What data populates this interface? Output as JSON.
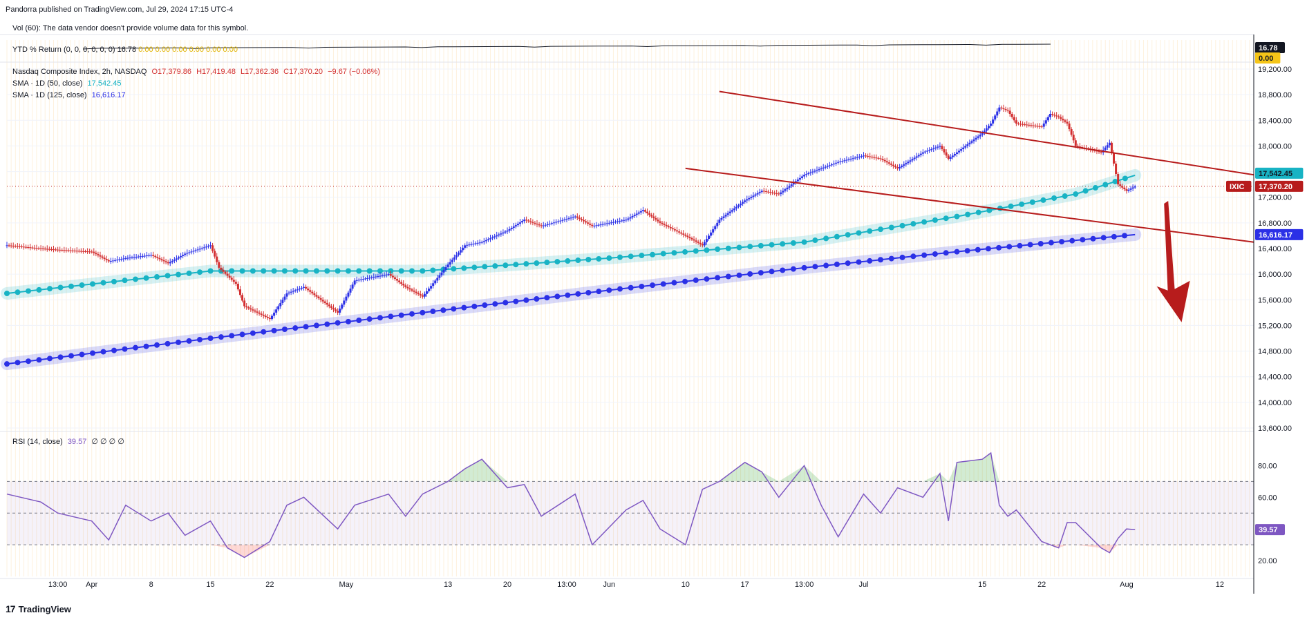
{
  "header": {
    "publisher_line": "Pandorra published on TradingView.com, Jul 29, 2024 17:15 UTC-4",
    "vol_line": "Vol (60): The data vendor doesn't provide volume data for this symbol.",
    "ytd_label": "YTD % Return (0, 0, 0, 0, 0, 0)",
    "ytd_value": "16.78",
    "ytd_zeros": "0.00  0.00  0.00  0.00  0.00  0.00"
  },
  "legend": {
    "symbol": "Nasdaq Composite Index, 2h, NASDAQ",
    "open": "O17,379.86",
    "high": "H17,419.48",
    "low": "L17,362.36",
    "close": "C17,370.20",
    "change": "−9.67 (−0.06%)",
    "sma50_label": "SMA · 1D (50, close)",
    "sma50_value": "17,542.45",
    "sma125_label": "SMA · 1D (125, close)",
    "sma125_value": "16,616.17",
    "rsi_label": "RSI (14, close)",
    "rsi_value": "39.57",
    "rsi_extra": "∅  ∅  ∅  ∅"
  },
  "price_labels": {
    "ytd_badge": "16.78",
    "ytd_zero_badge": "0.00",
    "sma50_badge": "17,542.45",
    "last_badge": "17,370.20",
    "symbol_badge": "IXIC",
    "sma125_badge": "16,616.17",
    "rsi_badge": "39.57"
  },
  "colors": {
    "up": "#2b30e6",
    "down": "#d32f2f",
    "sma50": "#18b3c4",
    "sma125": "#2b30e6",
    "channel": "#b71c1c",
    "rsi": "#7e57c2"
  },
  "chart_data": [
    {
      "type": "candlestick",
      "symbol": "IXIC",
      "ylim": [
        13600,
        19200
      ],
      "y_ticks": [
        "19,200.00",
        "18,800.00",
        "18,400.00",
        "18,000.00",
        "17,600.00",
        "17,200.00",
        "16,800.00",
        "16,400.00",
        "16,000.00",
        "15,600.00",
        "15,200.00",
        "14,800.00",
        "14,400.00",
        "14,000.00",
        "13,600.00"
      ],
      "y_tick_values": [
        19200,
        18800,
        18400,
        18000,
        17600,
        17200,
        16800,
        16400,
        16000,
        15600,
        15200,
        14800,
        14400,
        14000,
        13600
      ],
      "x_tick_labels": [
        "13:00",
        "Apr",
        "8",
        "15",
        "22",
        "May",
        "13",
        "20",
        "13:00",
        "Jun",
        "10",
        "17",
        "13:00",
        "Jul",
        "15",
        "22",
        "Aug",
        "12"
      ],
      "x_tick_dates": [
        "2024-03-28",
        "2024-04-01",
        "2024-04-08",
        "2024-04-15",
        "2024-04-22",
        "2024-05-01",
        "2024-05-13",
        "2024-05-20",
        "2024-05-27",
        "2024-06-01",
        "2024-06-10",
        "2024-06-17",
        "2024-06-24",
        "2024-07-01",
        "2024-07-15",
        "2024-07-22",
        "2024-08-01",
        "2024-08-12"
      ],
      "price_path": [
        [
          "2024-03-22",
          16450
        ],
        [
          "2024-03-26",
          16400
        ],
        [
          "2024-03-28",
          16380
        ],
        [
          "2024-04-01",
          16350
        ],
        [
          "2024-04-03",
          16200
        ],
        [
          "2024-04-05",
          16250
        ],
        [
          "2024-04-08",
          16300
        ],
        [
          "2024-04-10",
          16170
        ],
        [
          "2024-04-12",
          16320
        ],
        [
          "2024-04-15",
          16450
        ],
        [
          "2024-04-16",
          16100
        ],
        [
          "2024-04-18",
          15850
        ],
        [
          "2024-04-19",
          15500
        ],
        [
          "2024-04-22",
          15300
        ],
        [
          "2024-04-24",
          15700
        ],
        [
          "2024-04-26",
          15800
        ],
        [
          "2024-04-30",
          15400
        ],
        [
          "2024-05-02",
          15900
        ],
        [
          "2024-05-06",
          16000
        ],
        [
          "2024-05-08",
          15800
        ],
        [
          "2024-05-10",
          15650
        ],
        [
          "2024-05-13",
          16150
        ],
        [
          "2024-05-15",
          16450
        ],
        [
          "2024-05-17",
          16500
        ],
        [
          "2024-05-20",
          16680
        ],
        [
          "2024-05-22",
          16850
        ],
        [
          "2024-05-24",
          16750
        ],
        [
          "2024-05-28",
          16900
        ],
        [
          "2024-05-30",
          16750
        ],
        [
          "2024-06-03",
          16850
        ],
        [
          "2024-06-05",
          17000
        ],
        [
          "2024-06-07",
          16800
        ],
        [
          "2024-06-10",
          16600
        ],
        [
          "2024-06-12",
          16450
        ],
        [
          "2024-06-14",
          16850
        ],
        [
          "2024-06-17",
          17150
        ],
        [
          "2024-06-19",
          17300
        ],
        [
          "2024-06-21",
          17250
        ],
        [
          "2024-06-24",
          17550
        ],
        [
          "2024-06-26",
          17650
        ],
        [
          "2024-06-28",
          17750
        ],
        [
          "2024-07-01",
          17850
        ],
        [
          "2024-07-03",
          17800
        ],
        [
          "2024-07-05",
          17650
        ],
        [
          "2024-07-08",
          17900
        ],
        [
          "2024-07-10",
          18000
        ],
        [
          "2024-07-11",
          17800
        ],
        [
          "2024-07-12",
          17900
        ],
        [
          "2024-07-15",
          18200
        ],
        [
          "2024-07-16",
          18350
        ],
        [
          "2024-07-17",
          18600
        ],
        [
          "2024-07-18",
          18550
        ],
        [
          "2024-07-19",
          18350
        ],
        [
          "2024-07-22",
          18300
        ],
        [
          "2024-07-23",
          18500
        ],
        [
          "2024-07-24",
          18450
        ],
        [
          "2024-07-25",
          18350
        ],
        [
          "2024-07-26",
          18000
        ],
        [
          "2024-07-29",
          17900
        ],
        [
          "2024-07-30",
          18050
        ],
        [
          "2024-07-31",
          17400
        ],
        [
          "2024-08-01",
          17300
        ],
        [
          "2024-08-02",
          17370
        ]
      ],
      "sma50_path": [
        [
          "2024-03-22",
          15700
        ],
        [
          "2024-04-15",
          16050
        ],
        [
          "2024-05-10",
          16050
        ],
        [
          "2024-06-01",
          16250
        ],
        [
          "2024-06-24",
          16500
        ],
        [
          "2024-07-12",
          16900
        ],
        [
          "2024-07-26",
          17250
        ],
        [
          "2024-08-02",
          17542.45
        ]
      ],
      "sma125_path": [
        [
          "2024-03-22",
          14600
        ],
        [
          "2024-04-15",
          15000
        ],
        [
          "2024-05-10",
          15400
        ],
        [
          "2024-06-01",
          15750
        ],
        [
          "2024-06-24",
          16100
        ],
        [
          "2024-07-12",
          16350
        ],
        [
          "2024-08-02",
          16616.17
        ]
      ],
      "channel_upper": [
        [
          "2024-06-14",
          18850
        ],
        [
          "2024-08-16",
          17550
        ]
      ],
      "channel_lower": [
        [
          "2024-06-10",
          17650
        ],
        [
          "2024-08-16",
          16500
        ]
      ],
      "last_price": 17370.2,
      "annotation": "downward arrow projecting lower price"
    },
    {
      "type": "line",
      "name": "RSI (14, close)",
      "ylim": [
        10,
        95
      ],
      "y_ticks": [
        "80.00",
        "60.00",
        "40.00",
        "20.00"
      ],
      "y_tick_values": [
        80,
        60,
        40,
        20
      ],
      "bands": {
        "overbought": 70,
        "middle": 50,
        "oversold": 30
      },
      "points": [
        [
          "2024-03-22",
          62
        ],
        [
          "2024-03-26",
          57
        ],
        [
          "2024-03-28",
          50
        ],
        [
          "2024-04-01",
          45
        ],
        [
          "2024-04-03",
          33
        ],
        [
          "2024-04-05",
          55
        ],
        [
          "2024-04-08",
          45
        ],
        [
          "2024-04-10",
          50
        ],
        [
          "2024-04-12",
          36
        ],
        [
          "2024-04-15",
          45
        ],
        [
          "2024-04-17",
          28
        ],
        [
          "2024-04-19",
          22
        ],
        [
          "2024-04-22",
          32
        ],
        [
          "2024-04-24",
          55
        ],
        [
          "2024-04-26",
          60
        ],
        [
          "2024-04-30",
          40
        ],
        [
          "2024-05-02",
          55
        ],
        [
          "2024-05-06",
          62
        ],
        [
          "2024-05-08",
          48
        ],
        [
          "2024-05-10",
          62
        ],
        [
          "2024-05-13",
          70
        ],
        [
          "2024-05-15",
          78
        ],
        [
          "2024-05-17",
          84
        ],
        [
          "2024-05-20",
          66
        ],
        [
          "2024-05-22",
          68
        ],
        [
          "2024-05-24",
          48
        ],
        [
          "2024-05-28",
          62
        ],
        [
          "2024-05-30",
          30
        ],
        [
          "2024-06-03",
          52
        ],
        [
          "2024-06-05",
          58
        ],
        [
          "2024-06-07",
          40
        ],
        [
          "2024-06-10",
          30
        ],
        [
          "2024-06-12",
          65
        ],
        [
          "2024-06-14",
          70
        ],
        [
          "2024-06-17",
          82
        ],
        [
          "2024-06-19",
          76
        ],
        [
          "2024-06-21",
          60
        ],
        [
          "2024-06-24",
          80
        ],
        [
          "2024-06-26",
          55
        ],
        [
          "2024-06-28",
          35
        ],
        [
          "2024-07-01",
          62
        ],
        [
          "2024-07-03",
          50
        ],
        [
          "2024-07-05",
          66
        ],
        [
          "2024-07-08",
          60
        ],
        [
          "2024-07-10",
          75
        ],
        [
          "2024-07-11",
          45
        ],
        [
          "2024-07-12",
          82
        ],
        [
          "2024-07-15",
          84
        ],
        [
          "2024-07-16",
          88
        ],
        [
          "2024-07-17",
          55
        ],
        [
          "2024-07-18",
          48
        ],
        [
          "2024-07-19",
          52
        ],
        [
          "2024-07-22",
          32
        ],
        [
          "2024-07-23",
          30
        ],
        [
          "2024-07-24",
          28
        ],
        [
          "2024-07-25",
          44
        ],
        [
          "2024-07-26",
          44
        ],
        [
          "2024-07-29",
          28
        ],
        [
          "2024-07-30",
          25
        ],
        [
          "2024-07-31",
          34
        ],
        [
          "2024-08-01",
          40
        ],
        [
          "2024-08-02",
          39.57
        ]
      ],
      "last_value": 39.57
    }
  ],
  "footer": {
    "brand": "TradingView"
  }
}
